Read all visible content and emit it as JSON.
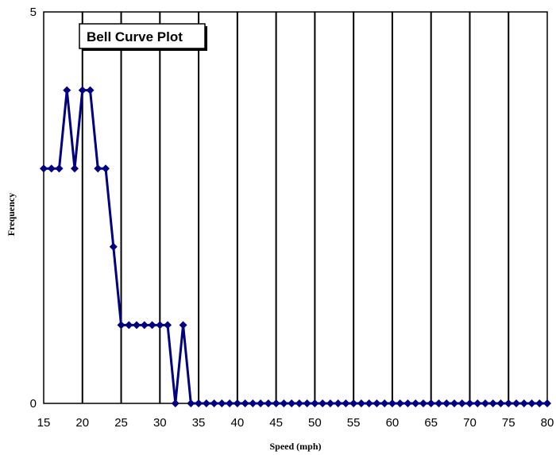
{
  "chart_data": {
    "type": "line",
    "title": "Bell Curve Plot",
    "xlabel": "Speed (mph)",
    "ylabel": "Frequency",
    "xlim": [
      15,
      80
    ],
    "ylim": [
      0,
      5
    ],
    "x_ticks": [
      15,
      20,
      25,
      30,
      35,
      40,
      45,
      50,
      55,
      60,
      65,
      70,
      75,
      80
    ],
    "y_ticks": [
      0,
      5
    ],
    "grid": "vertical",
    "line_color": "#000080",
    "series": [
      {
        "x": [
          15,
          16,
          17,
          18,
          19,
          20,
          21,
          22,
          23,
          24,
          25,
          26,
          27,
          28,
          29,
          30,
          31,
          32,
          33,
          34,
          35,
          36,
          37,
          38,
          39,
          40,
          41,
          42,
          43,
          44,
          45,
          46,
          47,
          48,
          49,
          50,
          51,
          52,
          53,
          54,
          55,
          56,
          57,
          58,
          59,
          60,
          61,
          62,
          63,
          64,
          65,
          66,
          67,
          68,
          69,
          70,
          71,
          72,
          73,
          74,
          75,
          76,
          77,
          78,
          79,
          80
        ],
        "y": [
          3,
          3,
          3,
          4,
          3,
          4,
          4,
          3,
          3,
          2,
          1,
          1,
          1,
          1,
          1,
          1,
          1,
          0,
          1,
          0,
          0,
          0,
          0,
          0,
          0,
          0,
          0,
          0,
          0,
          0,
          0,
          0,
          0,
          0,
          0,
          0,
          0,
          0,
          0,
          0,
          0,
          0,
          0,
          0,
          0,
          0,
          0,
          0,
          0,
          0,
          0,
          0,
          0,
          0,
          0,
          0,
          0,
          0,
          0,
          0,
          0,
          0,
          0,
          0,
          0,
          0
        ]
      }
    ]
  }
}
